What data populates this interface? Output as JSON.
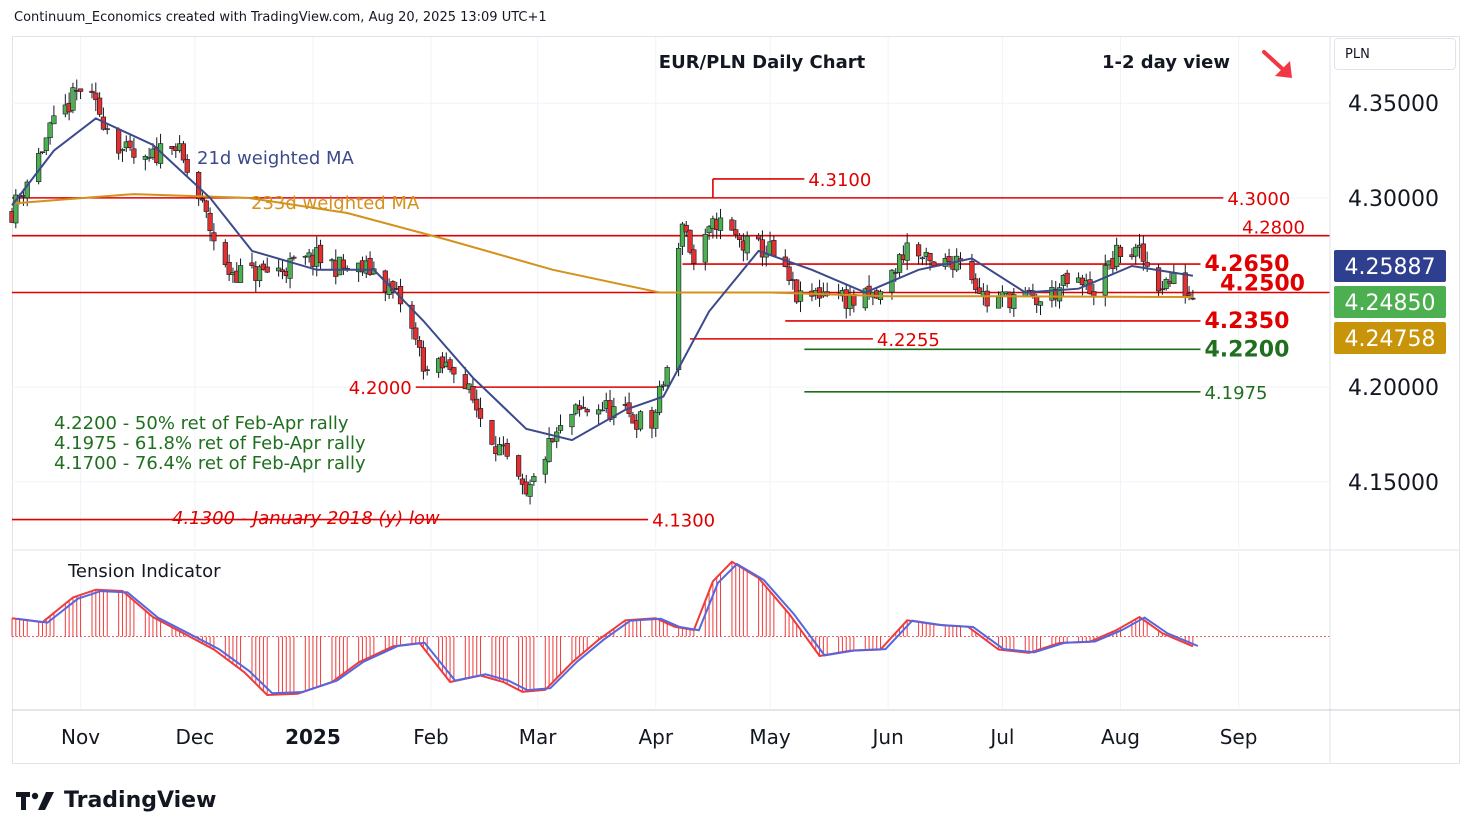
{
  "header": {
    "attribution": "Continuum_Economics created with TradingView.com, Aug 20, 2025 13:09 UTC+1"
  },
  "price_scale": {
    "unit": "PLN"
  },
  "footer": {
    "brand": "TradingView"
  },
  "view": {
    "direction_icon": "arrow-down-right-icon",
    "color": "#f23645"
  },
  "colors": {
    "up": "#4caf50",
    "down": "#e03030",
    "wick": "#131722",
    "ma21": "#3c4a8c",
    "ma233": "#c8a21b",
    "red_level": "#e00000",
    "green_level": "#1f6f1f",
    "tension_line_red": "#ef3b3b",
    "tension_line_blue": "#5567e0"
  },
  "chart_data": [
    {
      "type": "candlestick",
      "title": "EUR/PLN Daily Chart",
      "subtitle": "1-2 day view",
      "ylim": [
        4.115,
        4.385
      ],
      "y_ticks": [
        "4.35000",
        "4.30000",
        "4.20000",
        "4.15000"
      ],
      "x_ticks": [
        {
          "label": "Nov",
          "date": "2024-11-01",
          "bold": false
        },
        {
          "label": "Dec",
          "date": "2024-12-01",
          "bold": false
        },
        {
          "label": "2025",
          "date": "2025-01-01",
          "bold": true
        },
        {
          "label": "Feb",
          "date": "2025-02-01",
          "bold": false
        },
        {
          "label": "Mar",
          "date": "2025-03-01",
          "bold": false
        },
        {
          "label": "Apr",
          "date": "2025-04-01",
          "bold": false
        },
        {
          "label": "May",
          "date": "2025-05-01",
          "bold": false
        },
        {
          "label": "Jun",
          "date": "2025-06-01",
          "bold": false
        },
        {
          "label": "Jul",
          "date": "2025-07-01",
          "bold": false
        },
        {
          "label": "Aug",
          "date": "2025-08-01",
          "bold": false
        },
        {
          "label": "Sep",
          "date": "2025-09-01",
          "bold": false
        }
      ],
      "x_range": [
        "2024-10-14",
        "2025-09-25"
      ],
      "series": [
        {
          "name": "21d weighted MA",
          "color": "#3c4a8c"
        },
        {
          "name": "233d weighted MA",
          "color": "#d4911c"
        }
      ],
      "price_path": [
        {
          "date": "2024-10-14",
          "value": 4.293
        },
        {
          "date": "2024-10-24",
          "value": 4.335
        },
        {
          "date": "2024-11-01",
          "value": 4.358
        },
        {
          "date": "2024-11-06",
          "value": 4.345
        },
        {
          "date": "2024-11-12",
          "value": 4.325
        },
        {
          "date": "2024-11-18",
          "value": 4.317
        },
        {
          "date": "2024-11-25",
          "value": 4.332
        },
        {
          "date": "2024-12-03",
          "value": 4.295
        },
        {
          "date": "2024-12-09",
          "value": 4.262
        },
        {
          "date": "2024-12-16",
          "value": 4.26
        },
        {
          "date": "2024-12-23",
          "value": 4.262
        },
        {
          "date": "2025-01-02",
          "value": 4.268
        },
        {
          "date": "2025-01-10",
          "value": 4.262
        },
        {
          "date": "2025-01-17",
          "value": 4.262
        },
        {
          "date": "2025-01-24",
          "value": 4.245
        },
        {
          "date": "2025-01-31",
          "value": 4.208
        },
        {
          "date": "2025-02-07",
          "value": 4.212
        },
        {
          "date": "2025-02-14",
          "value": 4.185
        },
        {
          "date": "2025-02-21",
          "value": 4.16
        },
        {
          "date": "2025-02-26",
          "value": 4.14
        },
        {
          "date": "2025-03-03",
          "value": 4.165
        },
        {
          "date": "2025-03-10",
          "value": 4.185
        },
        {
          "date": "2025-03-17",
          "value": 4.19
        },
        {
          "date": "2025-03-24",
          "value": 4.185
        },
        {
          "date": "2025-03-31",
          "value": 4.18
        },
        {
          "date": "2025-04-04",
          "value": 4.21
        },
        {
          "date": "2025-04-08",
          "value": 4.29
        },
        {
          "date": "2025-04-11",
          "value": 4.265
        },
        {
          "date": "2025-04-17",
          "value": 4.288
        },
        {
          "date": "2025-04-24",
          "value": 4.275
        },
        {
          "date": "2025-05-01",
          "value": 4.272
        },
        {
          "date": "2025-05-09",
          "value": 4.245
        },
        {
          "date": "2025-05-16",
          "value": 4.252
        },
        {
          "date": "2025-05-23",
          "value": 4.245
        },
        {
          "date": "2025-05-30",
          "value": 4.248
        },
        {
          "date": "2025-06-06",
          "value": 4.275
        },
        {
          "date": "2025-06-13",
          "value": 4.262
        },
        {
          "date": "2025-06-20",
          "value": 4.27
        },
        {
          "date": "2025-06-27",
          "value": 4.245
        },
        {
          "date": "2025-07-04",
          "value": 4.248
        },
        {
          "date": "2025-07-11",
          "value": 4.245
        },
        {
          "date": "2025-07-18",
          "value": 4.255
        },
        {
          "date": "2025-07-25",
          "value": 4.252
        },
        {
          "date": "2025-08-01",
          "value": 4.272
        },
        {
          "date": "2025-08-06",
          "value": 4.27
        },
        {
          "date": "2025-08-11",
          "value": 4.255
        },
        {
          "date": "2025-08-15",
          "value": 4.256
        },
        {
          "date": "2025-08-20",
          "value": 4.2485
        }
      ],
      "ma21": [
        {
          "date": "2024-10-14",
          "value": 4.296
        },
        {
          "date": "2024-10-25",
          "value": 4.325
        },
        {
          "date": "2024-11-05",
          "value": 4.342
        },
        {
          "date": "2024-11-20",
          "value": 4.328
        },
        {
          "date": "2024-12-05",
          "value": 4.3
        },
        {
          "date": "2024-12-16",
          "value": 4.272
        },
        {
          "date": "2025-01-02",
          "value": 4.262
        },
        {
          "date": "2025-01-17",
          "value": 4.262
        },
        {
          "date": "2025-01-30",
          "value": 4.235
        },
        {
          "date": "2025-02-12",
          "value": 4.205
        },
        {
          "date": "2025-02-26",
          "value": 4.178
        },
        {
          "date": "2025-03-10",
          "value": 4.172
        },
        {
          "date": "2025-03-24",
          "value": 4.188
        },
        {
          "date": "2025-04-03",
          "value": 4.195
        },
        {
          "date": "2025-04-15",
          "value": 4.24
        },
        {
          "date": "2025-04-28",
          "value": 4.272
        },
        {
          "date": "2025-05-12",
          "value": 4.262
        },
        {
          "date": "2025-05-26",
          "value": 4.25
        },
        {
          "date": "2025-06-09",
          "value": 4.262
        },
        {
          "date": "2025-06-23",
          "value": 4.268
        },
        {
          "date": "2025-07-07",
          "value": 4.25
        },
        {
          "date": "2025-07-21",
          "value": 4.252
        },
        {
          "date": "2025-08-04",
          "value": 4.264
        },
        {
          "date": "2025-08-20",
          "value": 4.2589
        }
      ],
      "ma233": [
        {
          "date": "2024-10-14",
          "value": 4.297
        },
        {
          "date": "2024-11-15",
          "value": 4.302
        },
        {
          "date": "2024-12-15",
          "value": 4.3
        },
        {
          "date": "2025-01-10",
          "value": 4.292
        },
        {
          "date": "2025-02-05",
          "value": 4.278
        },
        {
          "date": "2025-03-05",
          "value": 4.262
        },
        {
          "date": "2025-04-02",
          "value": 4.25
        },
        {
          "date": "2025-05-01",
          "value": 4.25
        },
        {
          "date": "2025-06-01",
          "value": 4.248
        },
        {
          "date": "2025-07-01",
          "value": 4.248
        },
        {
          "date": "2025-08-20",
          "value": 4.2476
        }
      ],
      "levels": [
        {
          "label": "4.3100",
          "value": 4.31,
          "color": "#e00000",
          "from": "2025-04-16",
          "to": "2025-05-10",
          "label_at": "end",
          "size": "normal"
        },
        {
          "label": "4.3000",
          "value": 4.3,
          "color": "#e00000",
          "from": "2024-10-14",
          "to": "2025-08-28",
          "label_at": "end",
          "size": "normal"
        },
        {
          "label": "4.2800",
          "value": 4.28,
          "color": "#e00000",
          "from": "2024-10-14",
          "to": "2025-09-25",
          "label_at": "right",
          "size": "normal"
        },
        {
          "label": "4.2650",
          "value": 4.265,
          "color": "#e00000",
          "from": "2025-04-08",
          "to": "2025-08-22",
          "label_at": "end",
          "size": "big"
        },
        {
          "label": "4.2500",
          "value": 4.25,
          "color": "#e00000",
          "from": "2024-10-14",
          "to": "2025-09-25",
          "label_at": "right",
          "size": "big"
        },
        {
          "label": "4.2350",
          "value": 4.235,
          "color": "#e00000",
          "from": "2025-05-05",
          "to": "2025-08-22",
          "label_at": "end",
          "size": "big"
        },
        {
          "label": "4.2255",
          "value": 4.2255,
          "color": "#e00000",
          "from": "2025-04-10",
          "to": "2025-05-28",
          "label_at": "end",
          "size": "normal"
        },
        {
          "label": "4.2200",
          "value": 4.22,
          "color": "#1f6f1f",
          "from": "2025-05-10",
          "to": "2025-08-22",
          "label_at": "end",
          "size": "big"
        },
        {
          "label": "4.2000",
          "value": 4.2,
          "color": "#e00000",
          "from": "2025-01-28",
          "to": "2025-04-03",
          "label_at": "start",
          "size": "normal"
        },
        {
          "label": "4.1975",
          "value": 4.1975,
          "color": "#1f6f1f",
          "from": "2025-05-10",
          "to": "2025-08-22",
          "label_at": "end",
          "size": "normal"
        },
        {
          "label": "4.1300",
          "value": 4.13,
          "color": "#e00000",
          "from": "2024-10-14",
          "to": "2025-03-30",
          "label_at": "end",
          "size": "normal"
        }
      ],
      "annotations": [
        {
          "text": "4.2200 - 50% ret of Feb-Apr rally",
          "color": "#1f6f1f"
        },
        {
          "text": "4.1975 - 61.8% ret of Feb-Apr rally",
          "color": "#1f6f1f"
        },
        {
          "text": "4.1700 - 76.4% ret of Feb-Apr rally",
          "color": "#1f6f1f"
        }
      ],
      "low_note": "4.1300 - January 2018 (y) low",
      "price_tags": [
        {
          "text": "4.25887",
          "value": 4.25887,
          "bg": "#2f3f8f",
          "fg": "#ffffff"
        },
        {
          "text": "4.24850",
          "value": 4.2485,
          "bg": "#4caf50",
          "fg": "#ffffff"
        },
        {
          "text": "4.24758",
          "value": 4.24758,
          "bg": "#c8950a",
          "fg": "#ffffff"
        }
      ]
    },
    {
      "type": "histogram",
      "title": "Tension Indicator",
      "ylim": [
        -1.1,
        1.3
      ],
      "tension": [
        {
          "date": "2024-10-14",
          "value": 0.28
        },
        {
          "date": "2024-10-22",
          "value": 0.22
        },
        {
          "date": "2024-10-30",
          "value": 0.6
        },
        {
          "date": "2024-11-05",
          "value": 0.72
        },
        {
          "date": "2024-11-12",
          "value": 0.7
        },
        {
          "date": "2024-11-20",
          "value": 0.3
        },
        {
          "date": "2024-11-28",
          "value": 0.05
        },
        {
          "date": "2024-12-06",
          "value": -0.2
        },
        {
          "date": "2024-12-14",
          "value": -0.55
        },
        {
          "date": "2024-12-20",
          "value": -0.9
        },
        {
          "date": "2024-12-28",
          "value": -0.88
        },
        {
          "date": "2025-01-06",
          "value": -0.7
        },
        {
          "date": "2025-01-13",
          "value": -0.4
        },
        {
          "date": "2025-01-22",
          "value": -0.15
        },
        {
          "date": "2025-01-29",
          "value": -0.1
        },
        {
          "date": "2025-02-06",
          "value": -0.7
        },
        {
          "date": "2025-02-14",
          "value": -0.6
        },
        {
          "date": "2025-02-20",
          "value": -0.7
        },
        {
          "date": "2025-02-25",
          "value": -0.85
        },
        {
          "date": "2025-03-03",
          "value": -0.82
        },
        {
          "date": "2025-03-10",
          "value": -0.4
        },
        {
          "date": "2025-03-17",
          "value": -0.05
        },
        {
          "date": "2025-03-24",
          "value": 0.25
        },
        {
          "date": "2025-04-01",
          "value": 0.28
        },
        {
          "date": "2025-04-06",
          "value": 0.15
        },
        {
          "date": "2025-04-11",
          "value": 0.1
        },
        {
          "date": "2025-04-16",
          "value": 0.85
        },
        {
          "date": "2025-04-21",
          "value": 1.15
        },
        {
          "date": "2025-04-28",
          "value": 0.9
        },
        {
          "date": "2025-05-06",
          "value": 0.35
        },
        {
          "date": "2025-05-14",
          "value": -0.3
        },
        {
          "date": "2025-05-22",
          "value": -0.22
        },
        {
          "date": "2025-05-30",
          "value": -0.2
        },
        {
          "date": "2025-06-06",
          "value": 0.25
        },
        {
          "date": "2025-06-14",
          "value": 0.18
        },
        {
          "date": "2025-06-22",
          "value": 0.15
        },
        {
          "date": "2025-06-30",
          "value": -0.2
        },
        {
          "date": "2025-07-08",
          "value": -0.25
        },
        {
          "date": "2025-07-16",
          "value": -0.1
        },
        {
          "date": "2025-07-24",
          "value": -0.08
        },
        {
          "date": "2025-07-31",
          "value": 0.1
        },
        {
          "date": "2025-08-06",
          "value": 0.3
        },
        {
          "date": "2025-08-12",
          "value": 0.05
        },
        {
          "date": "2025-08-20",
          "value": -0.15
        }
      ]
    }
  ]
}
